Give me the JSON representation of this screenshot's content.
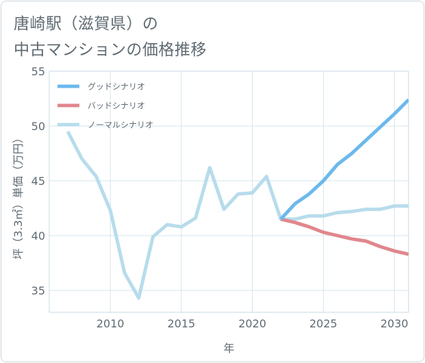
{
  "title": {
    "line1": "唐崎駅（滋賀県）の",
    "line2": "中古マンションの価格推移"
  },
  "colors": {
    "good": "#6cb9ec",
    "bad": "#e0878d",
    "normal": "#b7dcec",
    "grid": "#d3e4ee",
    "text": "#5f6a72"
  },
  "chart_data": {
    "type": "line",
    "title": "唐崎駅（滋賀県）の中古マンションの価格推移",
    "xlabel": "年",
    "ylabel": "坪（3.3㎡）単価（万円）",
    "xlim": [
      2005.7,
      2031
    ],
    "ylim": [
      33,
      55
    ],
    "xticks": [
      2010,
      2015,
      2020,
      2025,
      2030
    ],
    "yticks": [
      35,
      40,
      45,
      50,
      55
    ],
    "grid": true,
    "legend_position": "top-left",
    "series": [
      {
        "key": "good",
        "name": "グッドシナリオ",
        "x": [
          2022,
          2023,
          2024,
          2025,
          2026,
          2027,
          2028,
          2029,
          2030,
          2031
        ],
        "values": [
          41.5,
          42.9,
          43.8,
          45.0,
          46.5,
          47.5,
          48.7,
          49.9,
          51.1,
          52.4
        ]
      },
      {
        "key": "bad",
        "name": "バッドシナリオ",
        "x": [
          2022,
          2023,
          2024,
          2025,
          2026,
          2027,
          2028,
          2029,
          2030,
          2031
        ],
        "values": [
          41.5,
          41.2,
          40.8,
          40.3,
          40.0,
          39.7,
          39.5,
          39.0,
          38.6,
          38.3
        ]
      },
      {
        "key": "normal",
        "name": "ノーマルシナリオ",
        "x": [
          2007,
          2008,
          2009,
          2010,
          2011,
          2012,
          2013,
          2014,
          2015,
          2016,
          2017,
          2018,
          2019,
          2020,
          2021,
          2022,
          2023,
          2024,
          2025,
          2026,
          2027,
          2028,
          2029,
          2030,
          2031
        ],
        "values": [
          49.5,
          47.0,
          45.4,
          42.3,
          36.6,
          34.3,
          39.9,
          41.0,
          40.8,
          41.6,
          46.2,
          42.4,
          43.8,
          43.9,
          45.4,
          41.5,
          41.5,
          41.8,
          41.8,
          42.1,
          42.2,
          42.4,
          42.4,
          42.7,
          42.7
        ]
      }
    ]
  }
}
